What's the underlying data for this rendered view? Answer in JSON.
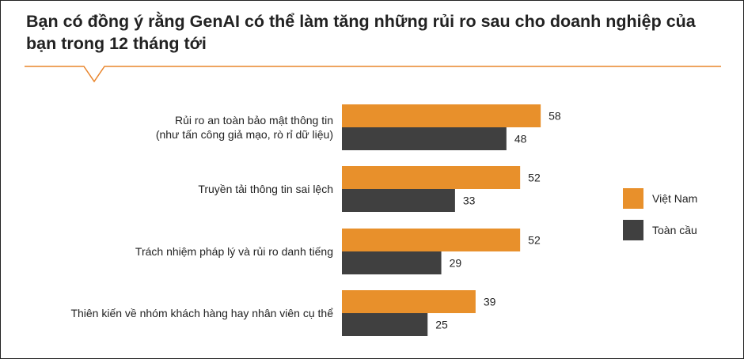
{
  "colors": {
    "accent": "#e9852c",
    "vietnam": "#e8902b",
    "global": "#404040",
    "text": "#222222"
  },
  "chart_data": {
    "type": "bar",
    "orientation": "horizontal",
    "title": "Bạn có đồng ý rằng GenAI có thể làm tăng những rủi ro sau cho doanh nghiệp của bạn trong 12 tháng tới",
    "categories": [
      [
        "Rủi ro an toàn bảo mật thông tin",
        "(như tấn công giả mạo, rò rỉ dữ liệu)"
      ],
      [
        "Truyền tải thông tin sai lệch"
      ],
      [
        "Trách nhiệm pháp lý và rủi ro danh tiếng"
      ],
      [
        "Thiên kiến về nhóm khách hàng hay nhân viên cụ thể"
      ]
    ],
    "series": [
      {
        "name": "Việt Nam",
        "color": "#e8902b",
        "values": [
          58,
          52,
          52,
          39
        ]
      },
      {
        "name": "Toàn cầu",
        "color": "#404040",
        "values": [
          48,
          33,
          29,
          25
        ]
      }
    ],
    "xlim": [
      0,
      100
    ],
    "grid": false,
    "legend_position": "right"
  }
}
